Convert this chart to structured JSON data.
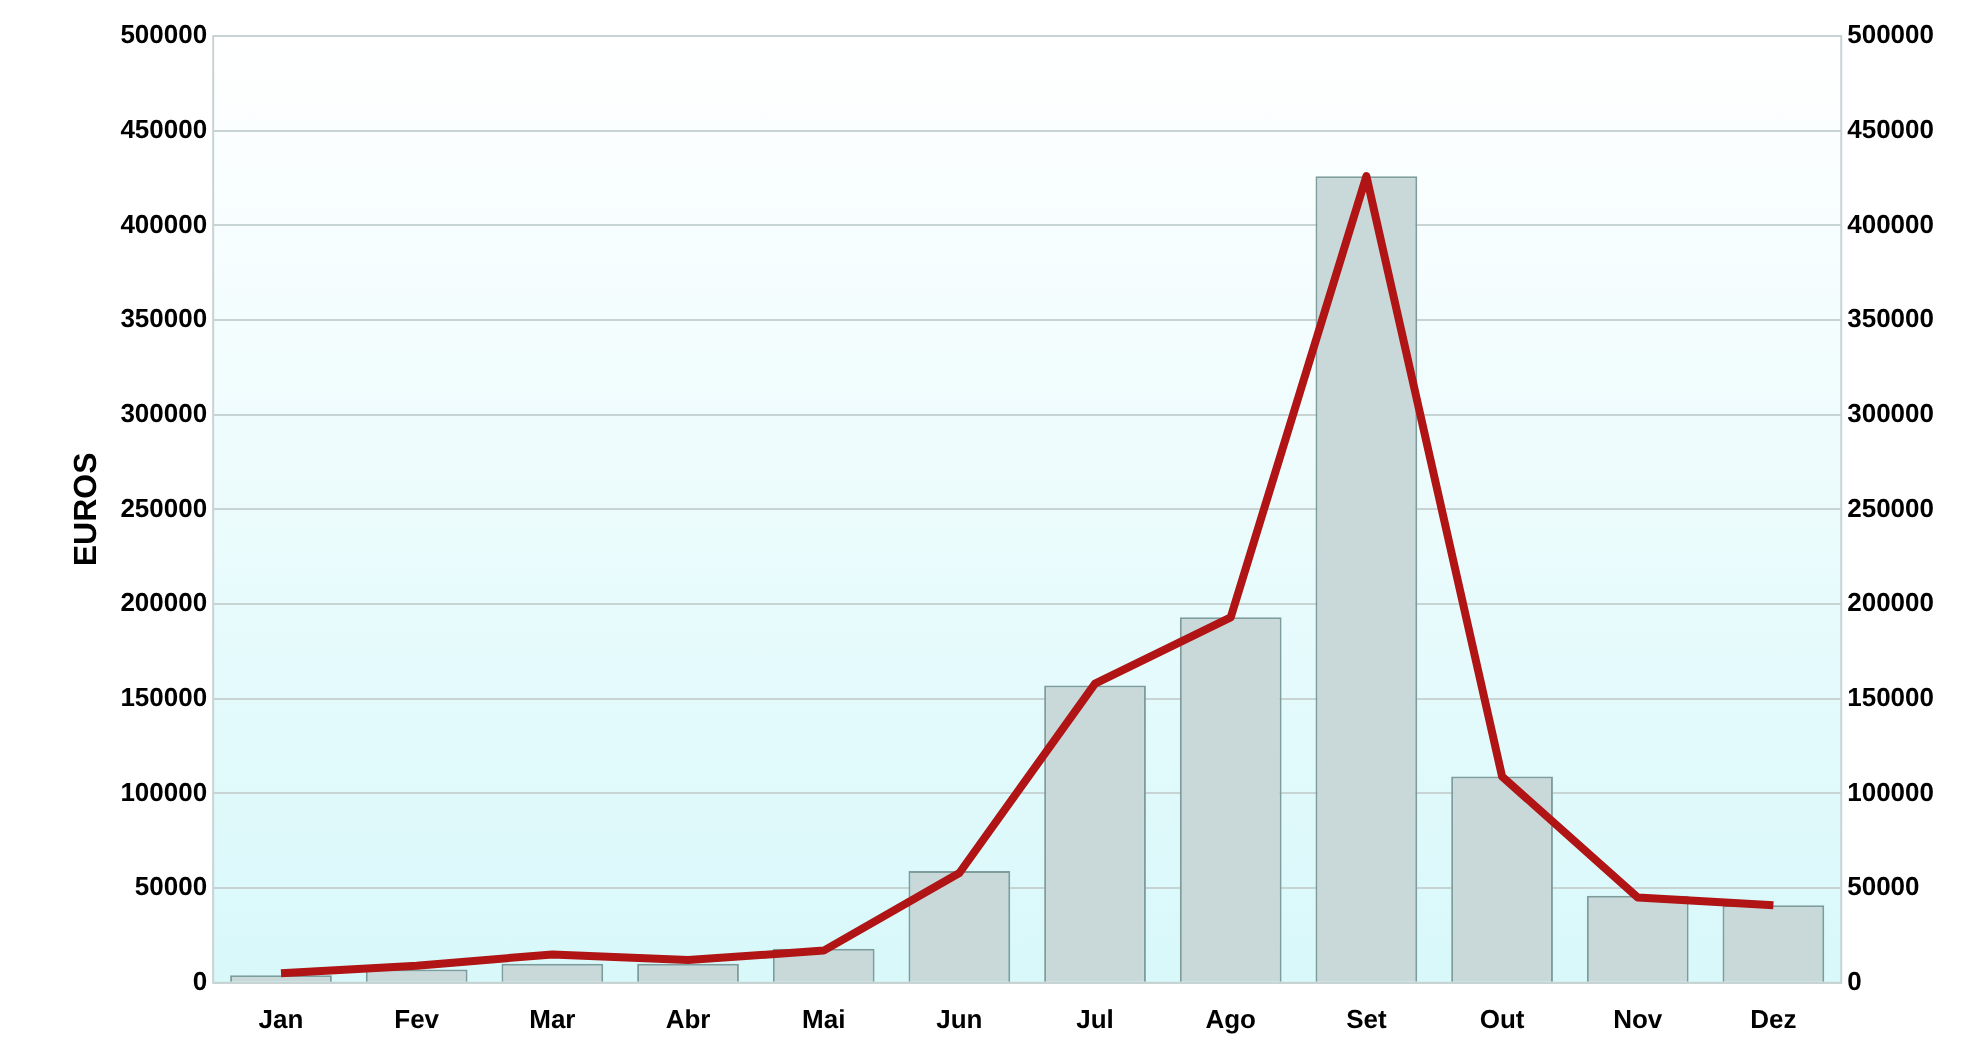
{
  "chart_data": {
    "type": "bar",
    "ylabel": "EUROS",
    "categories": [
      "Jan",
      "Fev",
      "Mar",
      "Abr",
      "Mai",
      "Jun",
      "Jul",
      "Ago",
      "Set",
      "Out",
      "Nov",
      "Dez"
    ],
    "series": [
      {
        "color": "#c9d9d9",
        "values": [
          4000,
          7000,
          10000,
          10000,
          18000,
          59000,
          157000,
          193000,
          426000,
          109000,
          46000,
          41000
        ]
      },
      {
        "type": "line",
        "color": "#b01414",
        "values": [
          5000,
          9000,
          15000,
          12000,
          17000,
          58000,
          158000,
          193000,
          426000,
          109000,
          45000,
          41000
        ]
      }
    ],
    "ylim": [
      0,
      500000
    ],
    "yticks": [
      0,
      50000,
      100000,
      150000,
      200000,
      250000,
      300000,
      350000,
      400000,
      450000,
      500000
    ],
    "y2lim": [
      0,
      500000
    ],
    "y2ticks": [
      0,
      50000,
      100000,
      150000,
      200000,
      250000,
      300000,
      350000,
      400000,
      450000,
      500000
    ],
    "grid": "y",
    "legend": false,
    "marker": "none",
    "line_style": "solid"
  }
}
